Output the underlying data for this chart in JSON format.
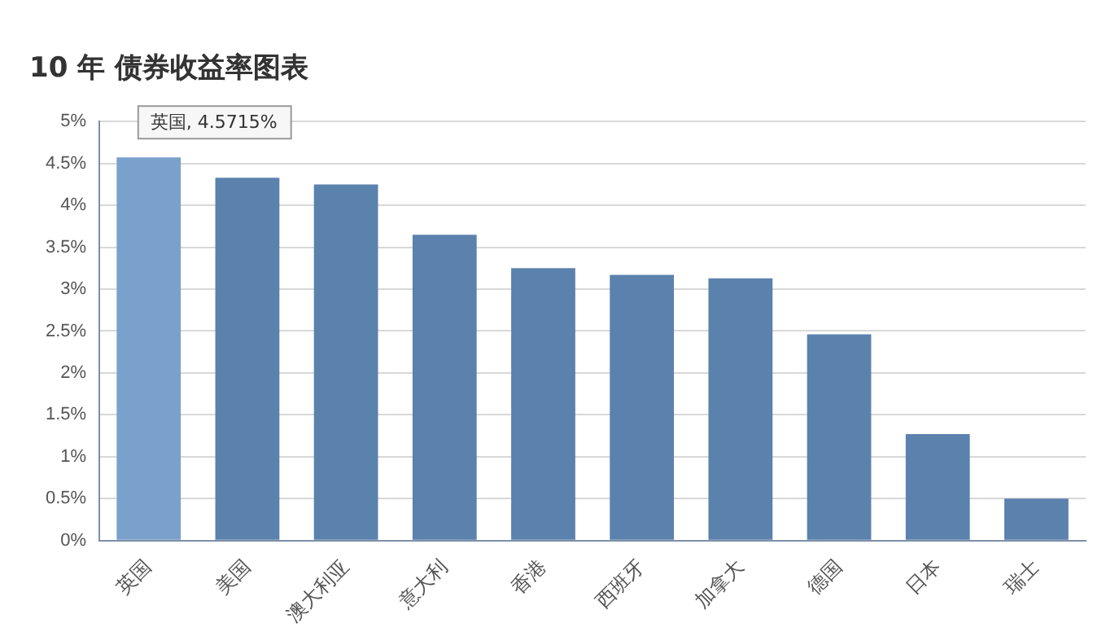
{
  "chart_data": {
    "type": "bar",
    "title": "10 年 债券收益率图表",
    "categories": [
      "英国",
      "美国",
      "澳大利亚",
      "意大利",
      "香港",
      "西班牙",
      "加拿大",
      "德国",
      "日本",
      "瑞士"
    ],
    "values": [
      4.5715,
      4.33,
      4.25,
      3.65,
      3.25,
      3.17,
      3.13,
      2.46,
      1.27,
      0.5
    ],
    "colors": [
      "#7aa0cc",
      "#5b82ad",
      "#5b82ad",
      "#5b82ad",
      "#5b82ad",
      "#5b82ad",
      "#5b82ad",
      "#5b82ad",
      "#5b82ad",
      "#5b82ad"
    ],
    "ylim": [
      0,
      5
    ],
    "yticks": [
      {
        "value": 0,
        "label": "0%"
      },
      {
        "value": 0.5,
        "label": "0.5%"
      },
      {
        "value": 1,
        "label": "1%"
      },
      {
        "value": 1.5,
        "label": "1.5%"
      },
      {
        "value": 2,
        "label": "2%"
      },
      {
        "value": 2.5,
        "label": "2.5%"
      },
      {
        "value": 3,
        "label": "3%"
      },
      {
        "value": 3.5,
        "label": "3.5%"
      },
      {
        "value": 4,
        "label": "4%"
      },
      {
        "value": 4.5,
        "label": "4.5%"
      },
      {
        "value": 5,
        "label": "5%"
      }
    ],
    "grid": "y",
    "legend": false,
    "annotations": [
      {
        "text": "英国, 4.5715%",
        "x": "英国",
        "y": 4.5715
      }
    ]
  }
}
